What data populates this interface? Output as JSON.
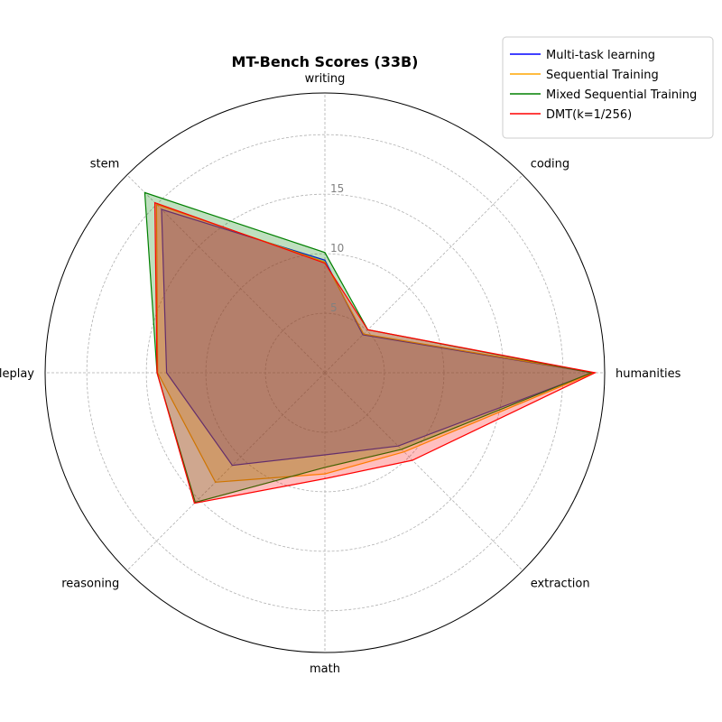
{
  "chart_data": {
    "type": "radar",
    "title": "MT-Bench Scores (33B)",
    "categories": [
      "humanities",
      "coding",
      "writing",
      "stem",
      "roleplay",
      "reasoning",
      "math",
      "extraction"
    ],
    "r_ticks": [
      "5",
      "10",
      "15"
    ],
    "r_tick_values": [
      5,
      10,
      15
    ],
    "rlim": [
      0,
      23.5
    ],
    "grid": true,
    "legend_position": "upper-right",
    "series": [
      {
        "name": "Multi-task learning",
        "color": "#0000ff",
        "values": [
          22.5,
          4.5,
          9.45,
          19.4,
          13.3,
          11,
          6.9,
          8.7
        ]
      },
      {
        "name": "Sequential Training",
        "color": "#ffa500",
        "values": [
          22.6,
          4.6,
          9.3,
          20,
          14.05,
          13,
          8.5,
          9.4
        ]
      },
      {
        "name": "Mixed Sequential Training",
        "color": "#008000",
        "values": [
          22.4,
          5.1,
          10.1,
          21.4,
          14.1,
          15.4,
          7.95,
          9.1
        ]
      },
      {
        "name": "DMT(k=1/256)",
        "color": "#ff0000",
        "values": [
          22.7,
          5.1,
          9.2,
          20.2,
          14.1,
          15.5,
          8.9,
          10.4
        ]
      }
    ]
  }
}
